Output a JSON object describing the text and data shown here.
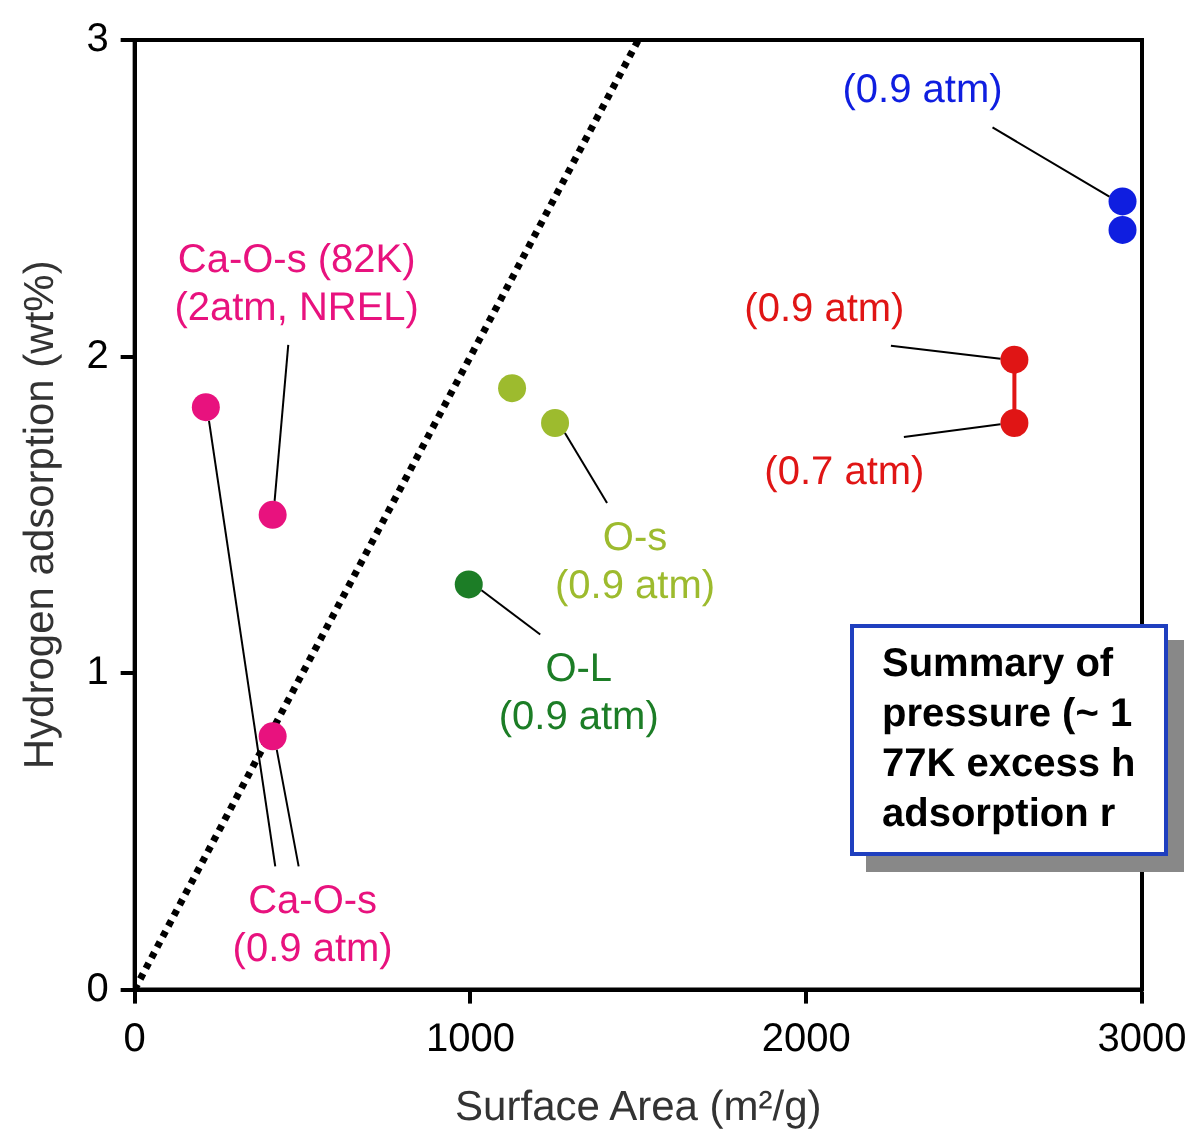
{
  "chart_data": {
    "type": "scatter",
    "xlabel": "Surface Area (m²/g)",
    "ylabel": "Hydrogen adsorption (wt%)",
    "xlim": [
      0,
      3000
    ],
    "xticks": [
      0,
      1000,
      2000,
      3000
    ],
    "ylim": [
      0,
      3
    ],
    "yticks": [
      0,
      1,
      2,
      3
    ],
    "grid": false,
    "legend": false,
    "marker": "circle",
    "series": [
      {
        "name": "Ca-O-s\n(0.9 atm)",
        "color": "#e8127e",
        "x": [
          212,
          411
        ],
        "values": [
          1.84,
          0.8
        ]
      },
      {
        "name": "Ca-O-s (82K)\n(2atm, NREL)",
        "color": "#e8127e",
        "x": [
          411
        ],
        "values": [
          1.5
        ]
      },
      {
        "name": "O-s\n(0.9 atm)",
        "color": "#9dbb2e",
        "x": [
          1124,
          1252
        ],
        "values": [
          1.9,
          1.79
        ]
      },
      {
        "name": "O-L\n(0.9 atm)",
        "color": "#1c7d26",
        "x": [
          995
        ],
        "values": [
          1.28
        ]
      },
      {
        "name": "(0.9 atm)",
        "color": "#0f1ee0",
        "x": [
          2942,
          2942
        ],
        "values": [
          2.49,
          2.4
        ]
      },
      {
        "name": "(0.9 atm)",
        "color": "#e01515",
        "x": [
          2620
        ],
        "values": [
          1.99
        ]
      },
      {
        "name": "(0.7 atm)",
        "color": "#e01515",
        "x": [
          2620
        ],
        "values": [
          1.79
        ]
      },
      {
        "type": "line",
        "color": "#e01515",
        "marker": "none",
        "x": [
          2620,
          2620
        ],
        "values": [
          1.99,
          1.79
        ]
      },
      {
        "type": "line",
        "color": "#000000",
        "marker": "none",
        "line_style": "dotted",
        "x": [
          0,
          1500
        ],
        "values": [
          0,
          3
        ]
      }
    ],
    "annotations": [
      "Summary of\npressure (~ 1\n77K excess h\nadsorption r"
    ]
  }
}
